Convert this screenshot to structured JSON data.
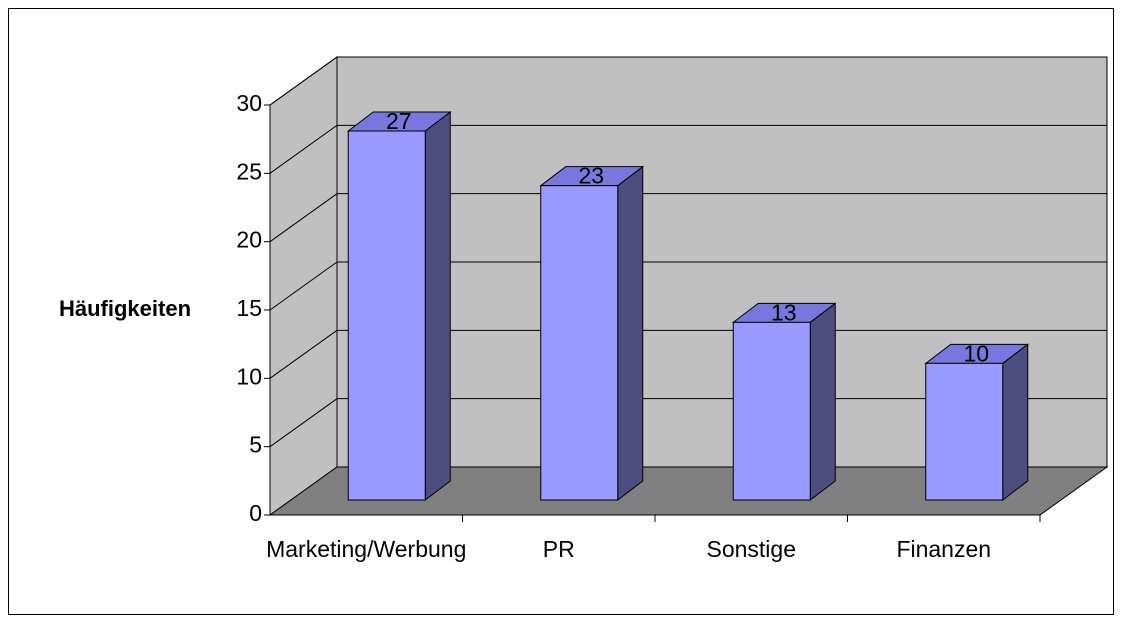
{
  "chart_data": {
    "type": "bar3d",
    "ylabel": "Häufigkeiten",
    "categories": [
      "Marketing/Werbung",
      "PR",
      "Sonstige",
      "Finanzen"
    ],
    "values": [
      27,
      23,
      13,
      10
    ],
    "color": "#9999ff",
    "ylim": [
      0,
      30
    ],
    "yticks": [
      0,
      5,
      10,
      15,
      20,
      25,
      30
    ],
    "grid": true
  }
}
